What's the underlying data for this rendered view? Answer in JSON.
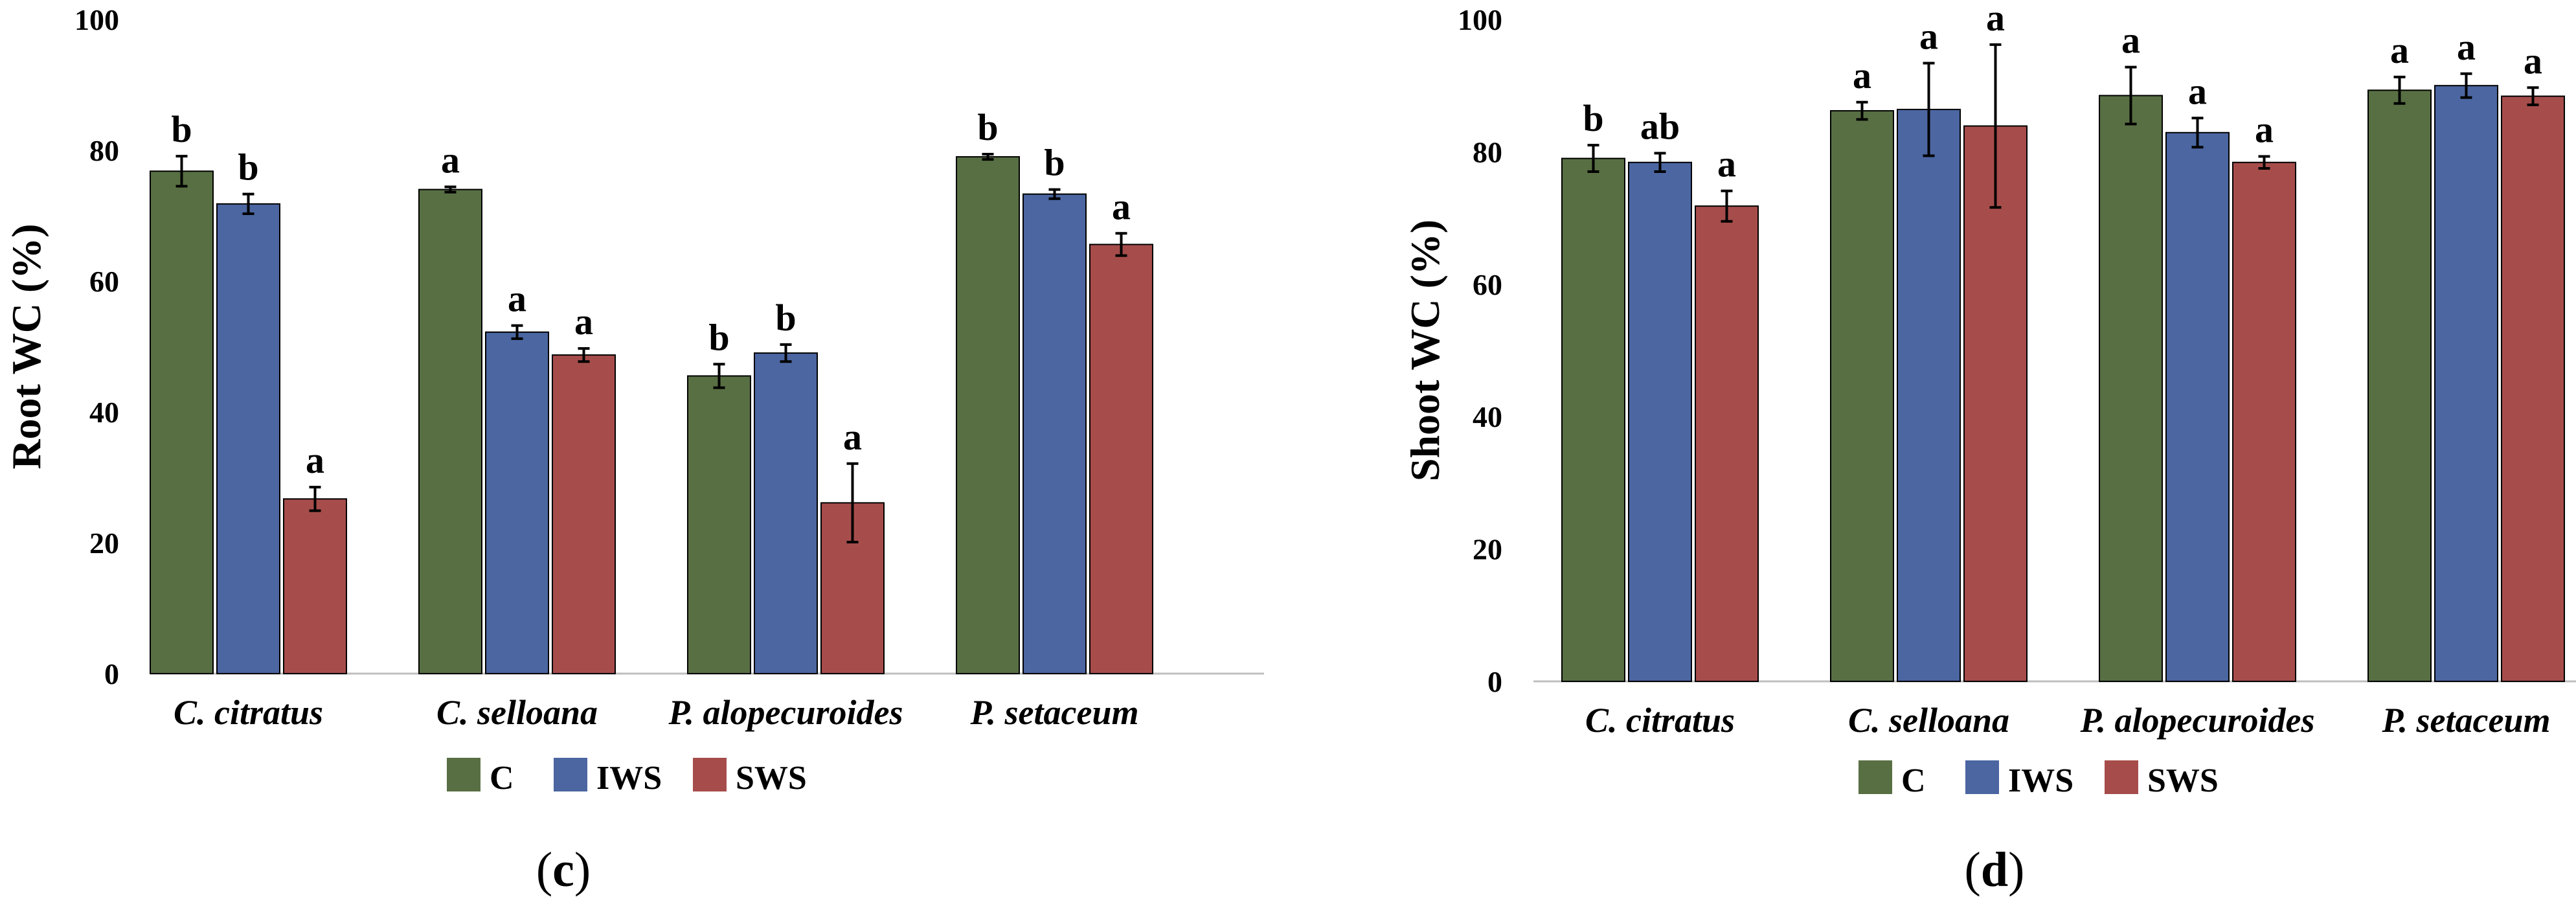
{
  "colors": {
    "C": "#586f43",
    "IWS": "#4b66a1",
    "SWS": "#a64d4b",
    "axis": "#bfbfbf",
    "error": "#000000"
  },
  "legend": [
    "C",
    "IWS",
    "SWS"
  ],
  "chart_data": [
    {
      "type": "bar",
      "panel": "c",
      "panel_label": {
        "open": "(",
        "letter": "c",
        "close": ")"
      },
      "title": "",
      "ylabel": "Root WC (%)",
      "xlabel": "",
      "ylim": [
        0,
        100
      ],
      "yticks": [
        0,
        20,
        40,
        60,
        80,
        100
      ],
      "grid": false,
      "legend_position": "bottom",
      "categories": [
        "C. citratus",
        "C. selloana",
        "P. alopecuroides",
        "P. setaceum"
      ],
      "series": [
        {
          "name": "C",
          "values": [
            76.8,
            74.0,
            45.5,
            79.0
          ],
          "errors": [
            2.3,
            0.4,
            1.8,
            0.4
          ],
          "letters": [
            "b",
            "a",
            "b",
            "b"
          ]
        },
        {
          "name": "IWS",
          "values": [
            71.8,
            52.2,
            49.0,
            73.3
          ],
          "errors": [
            1.5,
            1.0,
            1.3,
            0.7
          ],
          "letters": [
            "b",
            "a",
            "b",
            "b"
          ]
        },
        {
          "name": "SWS",
          "values": [
            26.7,
            48.7,
            26.1,
            65.6
          ],
          "errors": [
            1.8,
            1.0,
            6.0,
            1.7
          ],
          "letters": [
            "a",
            "a",
            "a",
            "a"
          ]
        }
      ]
    },
    {
      "type": "bar",
      "panel": "d",
      "panel_label": {
        "open": "(",
        "letter": "d",
        "close": ")"
      },
      "title": "",
      "ylabel": "Shoot WC (%)",
      "xlabel": "",
      "ylim": [
        0,
        100
      ],
      "yticks": [
        0,
        20,
        40,
        60,
        80,
        100
      ],
      "grid": false,
      "legend_position": "bottom",
      "categories": [
        "C. citratus",
        "C. selloana",
        "P. alopecuroides",
        "P. setaceum"
      ],
      "series": [
        {
          "name": "C",
          "values": [
            79.0,
            86.2,
            88.5,
            89.3
          ],
          "errors": [
            2.0,
            1.3,
            4.3,
            2.0
          ],
          "letters": [
            "b",
            "a",
            "a",
            "a"
          ]
        },
        {
          "name": "IWS",
          "values": [
            78.4,
            86.4,
            82.9,
            90.0
          ],
          "errors": [
            1.4,
            7.0,
            2.2,
            1.8
          ],
          "letters": [
            "ab",
            "a",
            "a",
            "a"
          ]
        },
        {
          "name": "SWS",
          "values": [
            71.8,
            83.9,
            78.4,
            88.4
          ],
          "errors": [
            2.3,
            12.3,
            0.9,
            1.3
          ],
          "letters": [
            "a",
            "a",
            "a",
            "a"
          ]
        }
      ]
    }
  ]
}
